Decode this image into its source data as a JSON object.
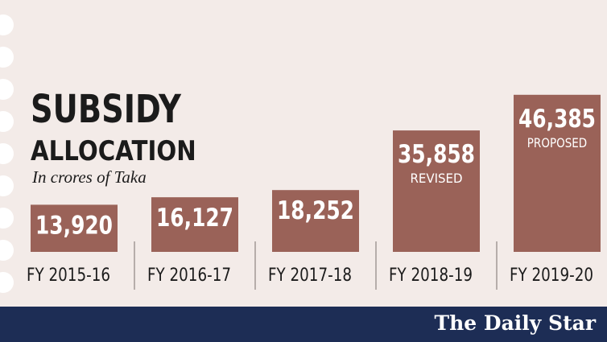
{
  "title_line1": "SUBSIDY",
  "title_line2": "ALLOCATION",
  "subtitle": "In crores of Taka",
  "brand": "The Daily Star",
  "colors": {
    "bar": "#9a6258",
    "bar_text": "#ffffff",
    "background": "#f3ebe8",
    "footer": "#1d2d55",
    "axis_text": "#1b1b1b"
  },
  "chart_data": {
    "type": "bar",
    "title": "SUBSIDY ALLOCATION",
    "subtitle": "In crores of Taka",
    "categories": [
      "FY 2015-16",
      "FY 2016-17",
      "FY 2017-18",
      "FY 2018-19",
      "FY 2019-20"
    ],
    "values": [
      13920,
      16127,
      18252,
      35858,
      46385
    ],
    "value_labels": [
      "13,920",
      "16,127",
      "18,252",
      "35,858",
      "46,385"
    ],
    "notes": [
      "",
      "",
      "",
      "REVISED",
      "PROPOSED"
    ],
    "ylim": [
      0,
      48000
    ],
    "grid": false,
    "legend": "none"
  }
}
